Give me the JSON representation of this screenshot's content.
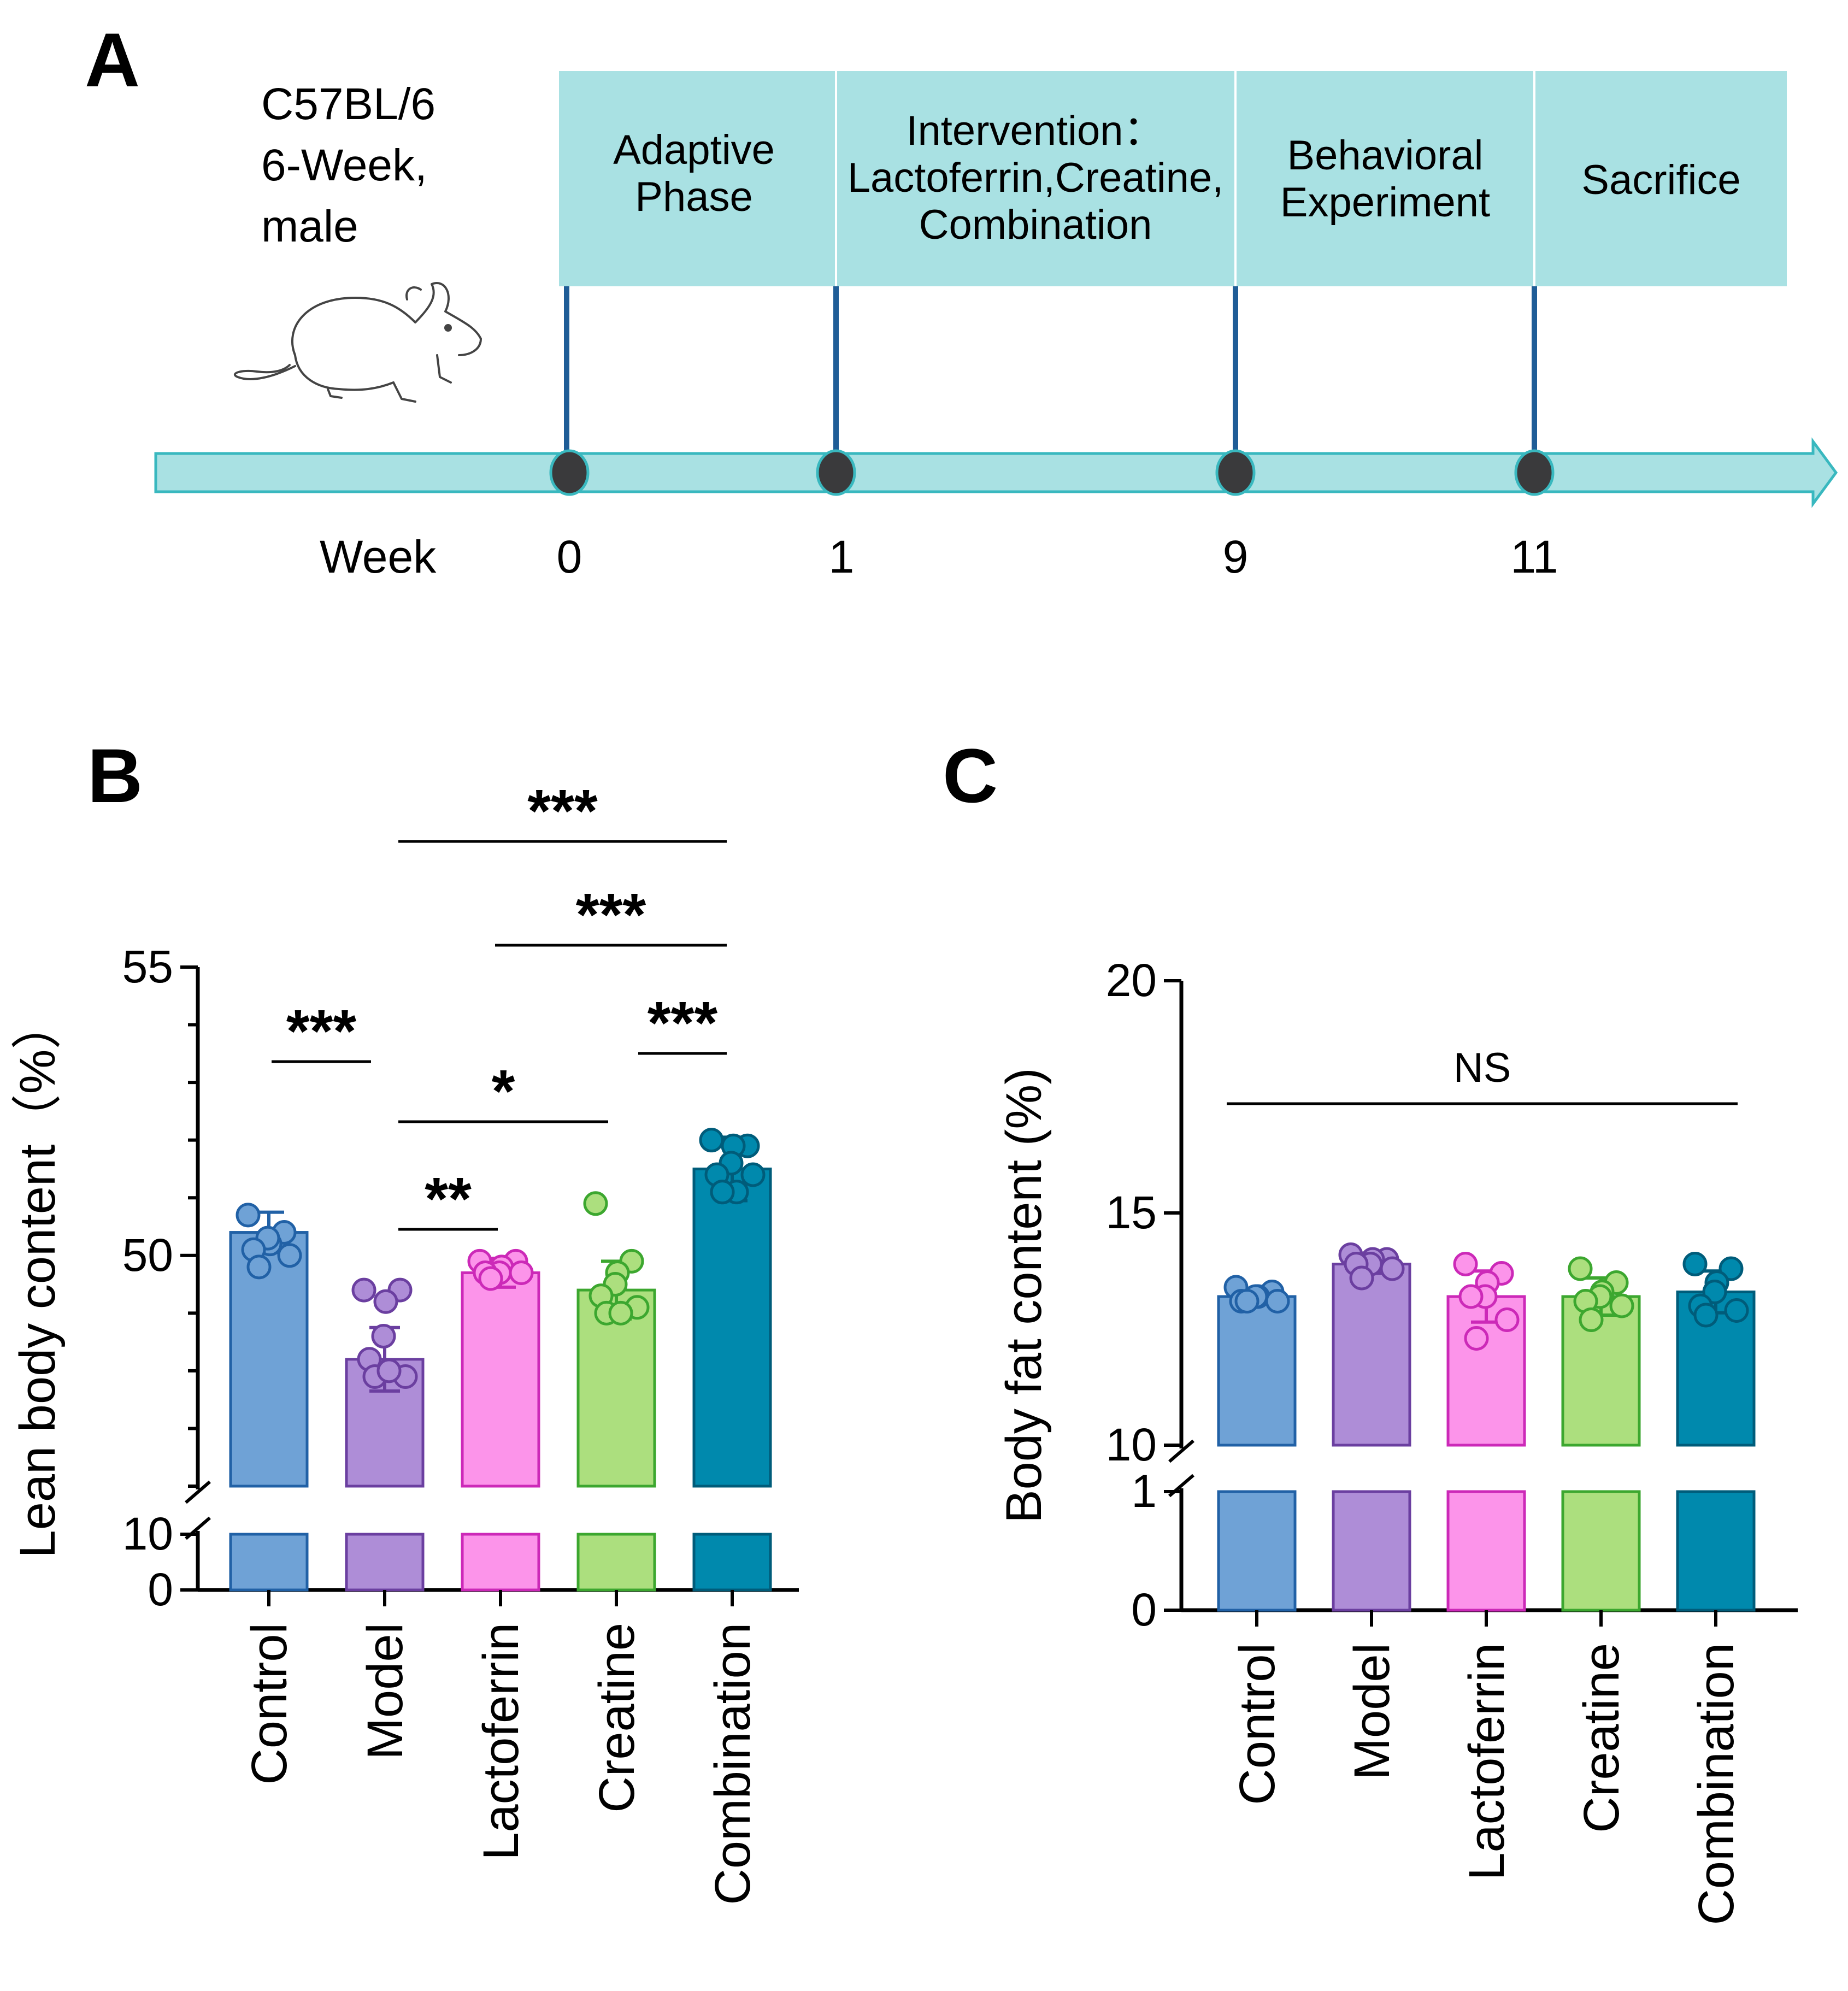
{
  "panel_a": {
    "label": "A",
    "strain": [
      "C57BL/6",
      "6-Week,",
      "male"
    ],
    "mouse_icon": "mouse-icon",
    "week_label": "Week",
    "phases": [
      "Adaptive\nPhase",
      "Intervention：\nLactoferrin,Creatine,\nCombination",
      "Behavioral\nExperiment",
      "Sacrifice"
    ],
    "weeks": [
      "0",
      "1",
      "9",
      "11"
    ],
    "colors": {
      "box": "#a9e1e3",
      "marker": "#3a3a3c",
      "stem": "#1f5d97",
      "arrow": "#a9e1e3"
    }
  },
  "chart_data": [
    {
      "panel_label": "B",
      "type": "bar",
      "categories": [
        "Control",
        "Model",
        "Lactoferrin",
        "Creatine",
        "Combination"
      ],
      "colors": [
        "#6fa2d6",
        "#ae8dd7",
        "#fc94ea",
        "#acdf7e",
        "#0089ad"
      ],
      "edge_colors": [
        "#2161a6",
        "#6b3fa0",
        "#cc29b8",
        "#3ca72f",
        "#005c7a"
      ],
      "ylabel": "Lean body content（%）",
      "y_tick_labels_lower": [
        "0",
        "10"
      ],
      "y_tick_labels_upper": [
        "50",
        "55"
      ],
      "lower_segment": [
        0,
        10
      ],
      "upper_segment": [
        46,
        55
      ],
      "means": [
        50.4,
        48.2,
        49.7,
        49.4,
        51.5
      ],
      "sd": [
        0.35,
        0.55,
        0.25,
        0.5,
        0.55
      ],
      "points": [
        [
          50.7,
          50.4,
          50.2,
          50.3,
          50.1,
          50.0,
          49.8
        ],
        [
          49.4,
          49.4,
          49.2,
          48.6,
          48.2,
          47.9,
          47.9,
          48.0
        ],
        [
          49.9,
          49.9,
          49.8,
          49.7,
          49.7,
          49.7,
          49.6
        ],
        [
          50.9,
          49.9,
          49.7,
          49.5,
          49.3,
          49.1,
          49.0,
          49.0
        ],
        [
          52.0,
          51.9,
          51.9,
          51.6,
          51.4,
          51.4,
          51.1,
          51.1,
          51.1
        ]
      ],
      "significance": [
        {
          "from": 0,
          "to": 1,
          "label": "***"
        },
        {
          "from": 1,
          "to": 4,
          "label": "***"
        },
        {
          "from": 2,
          "to": 4,
          "label": "***"
        },
        {
          "from": 3,
          "to": 4,
          "label": "***"
        },
        {
          "from": 1,
          "to": 3,
          "label": "*"
        },
        {
          "from": 1,
          "to": 2,
          "label": "**"
        }
      ]
    },
    {
      "panel_label": "C",
      "type": "bar",
      "categories": [
        "Control",
        "Model",
        "Lactoferrin",
        "Creatine",
        "Combination"
      ],
      "colors": [
        "#6fa2d6",
        "#ae8dd7",
        "#fc94ea",
        "#acdf7e",
        "#0089ad"
      ],
      "edge_colors": [
        "#2161a6",
        "#6b3fa0",
        "#cc29b8",
        "#3ca72f",
        "#005c7a"
      ],
      "ylabel": "Body fat content (%)",
      "y_tick_labels_lower": [
        "0",
        "1"
      ],
      "y_tick_labels_upper": [
        "10",
        "15",
        "20"
      ],
      "lower_segment": [
        0,
        1
      ],
      "upper_segment": [
        10,
        20
      ],
      "means": [
        13.2,
        13.9,
        13.2,
        13.2,
        13.3
      ],
      "sd": [
        0.1,
        0.2,
        0.55,
        0.4,
        0.45
      ],
      "points": [
        [
          13.4,
          13.3,
          13.2,
          13.2,
          13.1,
          13.1,
          13.1
        ],
        [
          14.1,
          14.0,
          14.0,
          13.9,
          13.9,
          13.8,
          13.6
        ],
        [
          13.9,
          13.7,
          13.5,
          13.2,
          13.2,
          12.7,
          12.3
        ],
        [
          13.8,
          13.5,
          13.3,
          13.2,
          13.1,
          13.0,
          12.7
        ],
        [
          13.9,
          13.8,
          13.5,
          13.3,
          13.0,
          12.9,
          12.8
        ]
      ],
      "significance": [
        {
          "from": 0,
          "to": 4,
          "label": "NS"
        }
      ]
    }
  ]
}
